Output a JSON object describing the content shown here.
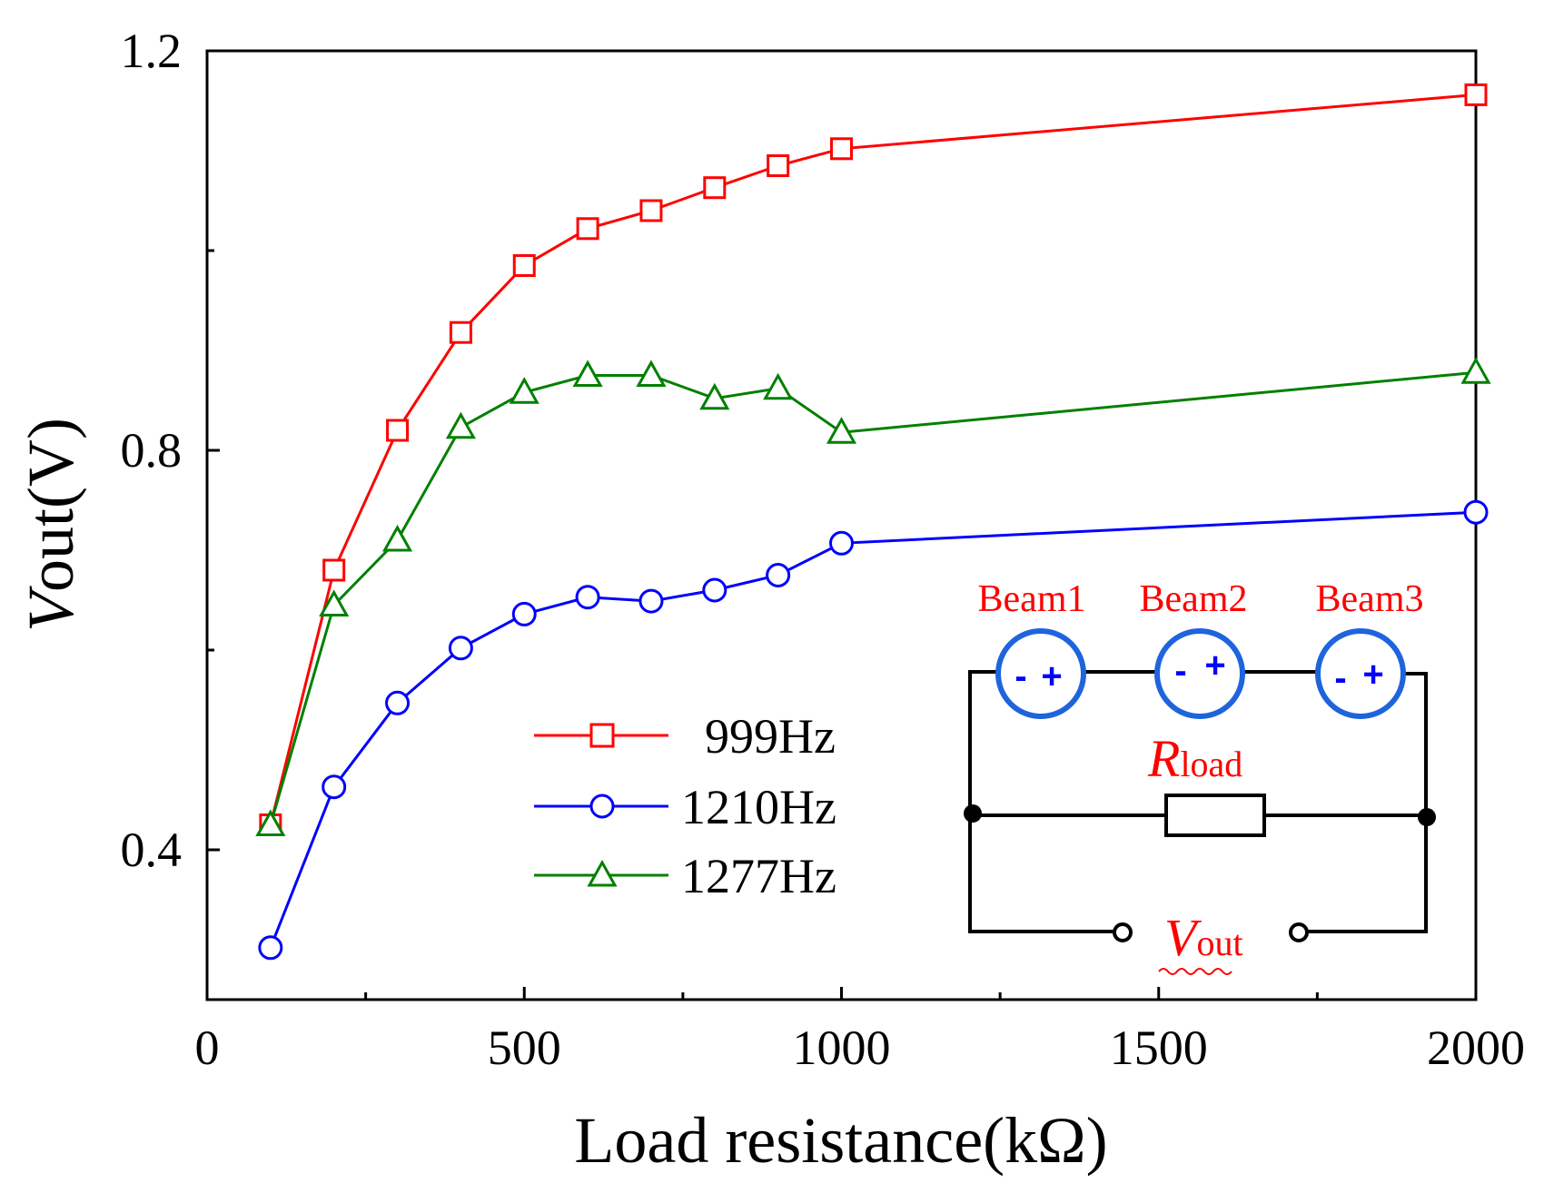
{
  "chart_data": {
    "type": "line",
    "title": "",
    "xlabel": "Load resistance(kΩ)",
    "ylabel": {
      "italic": "V",
      "rest": "out(V)"
    },
    "xlim": [
      0,
      2000
    ],
    "ylim": [
      0.25,
      1.2
    ],
    "xticks": [
      0,
      500,
      1000,
      1500,
      2000
    ],
    "xtick_labels": [
      "0",
      "500",
      "1000",
      "1500",
      "2000"
    ],
    "yticks": [
      0.4,
      0.8,
      1.2
    ],
    "ytick_labels": [
      "0.4",
      "0.8",
      "1.2"
    ],
    "legend_position": "center",
    "series": [
      {
        "name": "999Hz",
        "color": "#ff0000",
        "marker": "square",
        "x": [
          100,
          200,
          300,
          400,
          500,
          600,
          700,
          800,
          900,
          1000,
          2000
        ],
        "y": [
          0.425,
          0.68,
          0.82,
          0.918,
          0.985,
          1.022,
          1.04,
          1.063,
          1.085,
          1.102,
          1.156
        ]
      },
      {
        "name": "1210Hz",
        "color": "#0000ff",
        "marker": "circle",
        "x": [
          100,
          200,
          300,
          400,
          500,
          600,
          700,
          800,
          900,
          1000,
          2000
        ],
        "y": [
          0.302,
          0.463,
          0.547,
          0.602,
          0.636,
          0.653,
          0.649,
          0.66,
          0.675,
          0.707,
          0.738
        ]
      },
      {
        "name": "1277Hz",
        "color": "#008000",
        "marker": "triangle",
        "x": [
          100,
          200,
          300,
          400,
          500,
          600,
          700,
          800,
          900,
          1000,
          2000
        ],
        "y": [
          0.425,
          0.645,
          0.71,
          0.823,
          0.858,
          0.875,
          0.875,
          0.852,
          0.862,
          0.818,
          0.878
        ]
      }
    ]
  },
  "inset": {
    "beams": [
      "Beam1",
      "Beam2",
      "Beam3"
    ],
    "minus": "-",
    "plus": "+",
    "r_main": "R",
    "r_sub": "load",
    "v_main": "V",
    "v_sub": "out"
  },
  "colors": {
    "circuit_label": "#ff0000",
    "beam_symbol": "#0000ff",
    "wire": "#000000"
  }
}
